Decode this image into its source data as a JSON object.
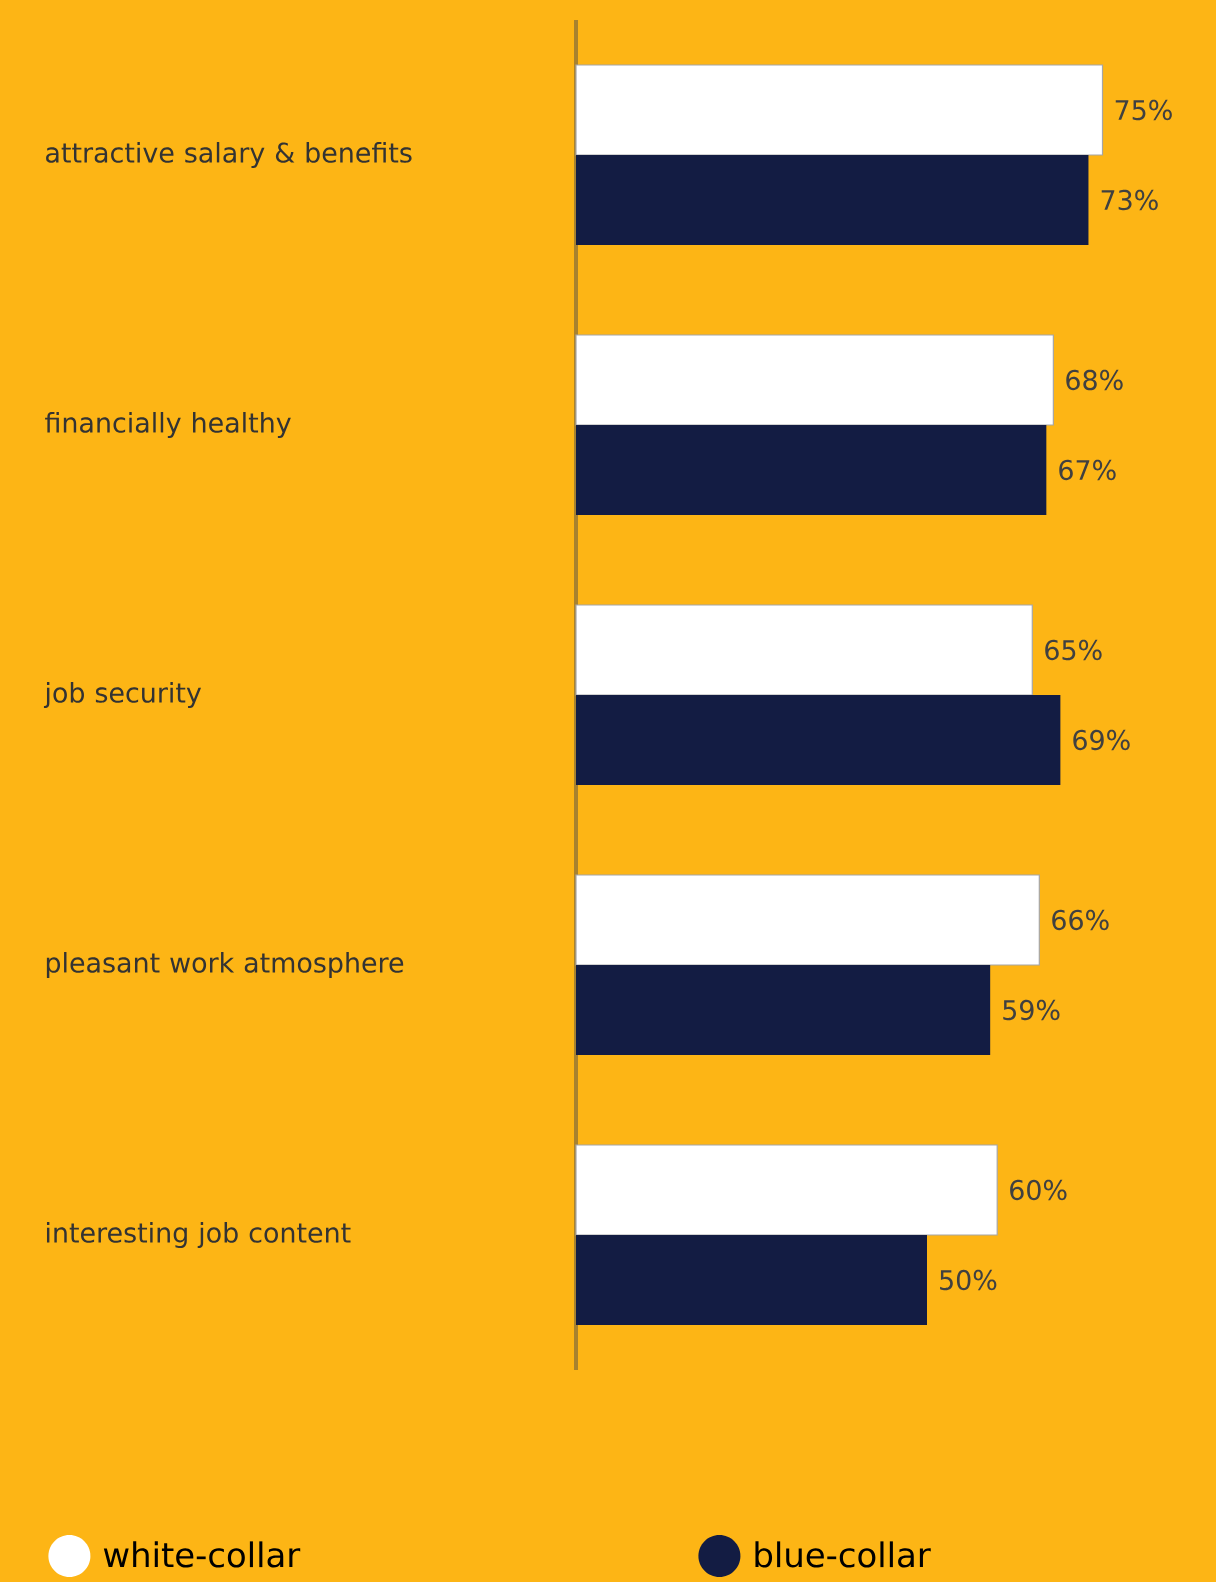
{
  "chart_data": {
    "type": "bar",
    "orientation": "horizontal",
    "categories": [
      "attractive salary & benefits",
      "financially healthy",
      "job security",
      "pleasant work atmosphere",
      "interesting job content"
    ],
    "series": [
      {
        "name": "white-collar",
        "color": "#ffffff",
        "values": [
          75,
          68,
          65,
          66,
          60
        ],
        "value_labels": [
          "75%",
          "68%",
          "65%",
          "66%",
          "60%"
        ]
      },
      {
        "name": "blue-collar",
        "color": "#131c43",
        "values": [
          73,
          67,
          69,
          59,
          50
        ],
        "value_labels": [
          "73%",
          "67%",
          "69%",
          "59%",
          "50%"
        ]
      }
    ],
    "tick_labels": "y",
    "legend": "bottom",
    "grid": false
  }
}
